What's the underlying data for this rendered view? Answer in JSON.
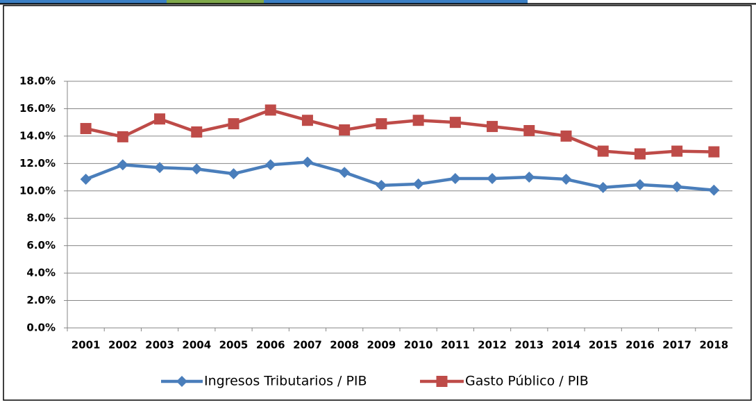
{
  "chart_data": {
    "type": "line",
    "categories": [
      "2001",
      "2002",
      "2003",
      "2004",
      "2005",
      "2006",
      "2007",
      "2008",
      "2009",
      "2010",
      "2011",
      "2012",
      "2013",
      "2014",
      "2015",
      "2016",
      "2017",
      "2018"
    ],
    "series": [
      {
        "name": "Ingresos Tributarios / PIB",
        "color": "#4a7ebb",
        "marker": "diamond",
        "values": [
          10.85,
          11.9,
          11.7,
          11.6,
          11.25,
          11.9,
          12.1,
          11.35,
          10.4,
          10.5,
          10.9,
          10.9,
          11.0,
          10.85,
          10.25,
          10.45,
          10.3,
          10.05
        ]
      },
      {
        "name": "Gasto Público / PIB",
        "color": "#be4b48",
        "marker": "square",
        "values": [
          14.55,
          13.95,
          15.25,
          14.3,
          14.9,
          15.9,
          15.15,
          14.45,
          14.9,
          15.15,
          15.0,
          14.7,
          14.4,
          14.0,
          12.9,
          12.7,
          12.9,
          12.85
        ]
      }
    ],
    "ylim": [
      0,
      18
    ],
    "yticks": [
      {
        "value": 0,
        "label": "0.0%"
      },
      {
        "value": 2,
        "label": "2.0%"
      },
      {
        "value": 4,
        "label": "4.0%"
      },
      {
        "value": 6,
        "label": "6.0%"
      },
      {
        "value": 8,
        "label": "8.0%"
      },
      {
        "value": 10,
        "label": "10.0%"
      },
      {
        "value": 12,
        "label": "12.0%"
      },
      {
        "value": 14,
        "label": "14.0%"
      },
      {
        "value": 16,
        "label": "16.0%"
      },
      {
        "value": 18,
        "label": "18.0%"
      }
    ],
    "grid": true,
    "legend": "bottom"
  }
}
